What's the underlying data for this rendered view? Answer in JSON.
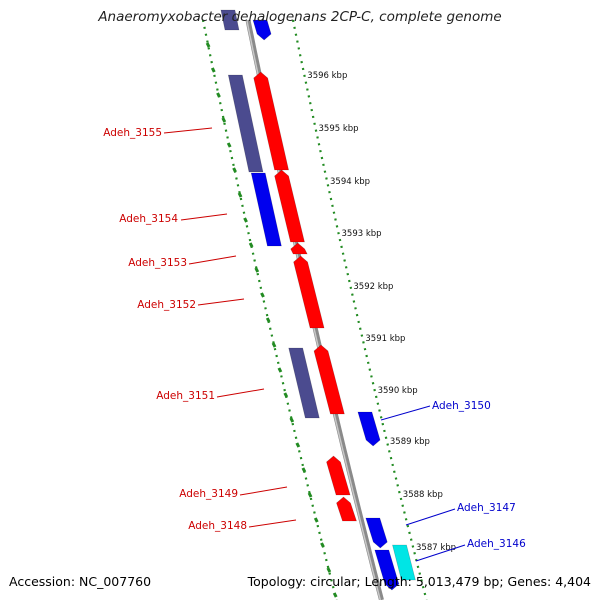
{
  "title": "Anaeromyxobacter dehalogenans 2CP-C, complete genome",
  "footer": {
    "accession": "Accession: NC_007760",
    "summary": "Topology: circular; Length: 5,013,479 bp; Genes: 4,404"
  },
  "colors": {
    "forward_cds": "#ff0000",
    "reverse_cds": "#0000ee",
    "other_gene": "#4b4b8f",
    "cyan_gene": "#00e5e5",
    "backbone": "#8a8a8a",
    "dotted_track": "#228b22",
    "label_forward": "#cc0000",
    "label_reverse": "#0000cc"
  },
  "ruler": {
    "unit": "kbp",
    "ticks": [
      "3596 kbp",
      "3595 kbp",
      "3594 kbp",
      "3593 kbp",
      "3592 kbp",
      "3591 kbp",
      "3590 kbp",
      "3589 kbp",
      "3588 kbp",
      "3587 kbp"
    ]
  },
  "gene_labels": [
    {
      "text": "Adeh_3155",
      "strand": "forward"
    },
    {
      "text": "Adeh_3154",
      "strand": "forward"
    },
    {
      "text": "Adeh_3153",
      "strand": "forward"
    },
    {
      "text": "Adeh_3152",
      "strand": "forward"
    },
    {
      "text": "Adeh_3151",
      "strand": "forward"
    },
    {
      "text": "Adeh_3150",
      "strand": "reverse"
    },
    {
      "text": "Adeh_3149",
      "strand": "forward"
    },
    {
      "text": "Adeh_3148",
      "strand": "forward"
    },
    {
      "text": "Adeh_3147",
      "strand": "reverse"
    },
    {
      "text": "Adeh_3146",
      "strand": "reverse"
    }
  ]
}
